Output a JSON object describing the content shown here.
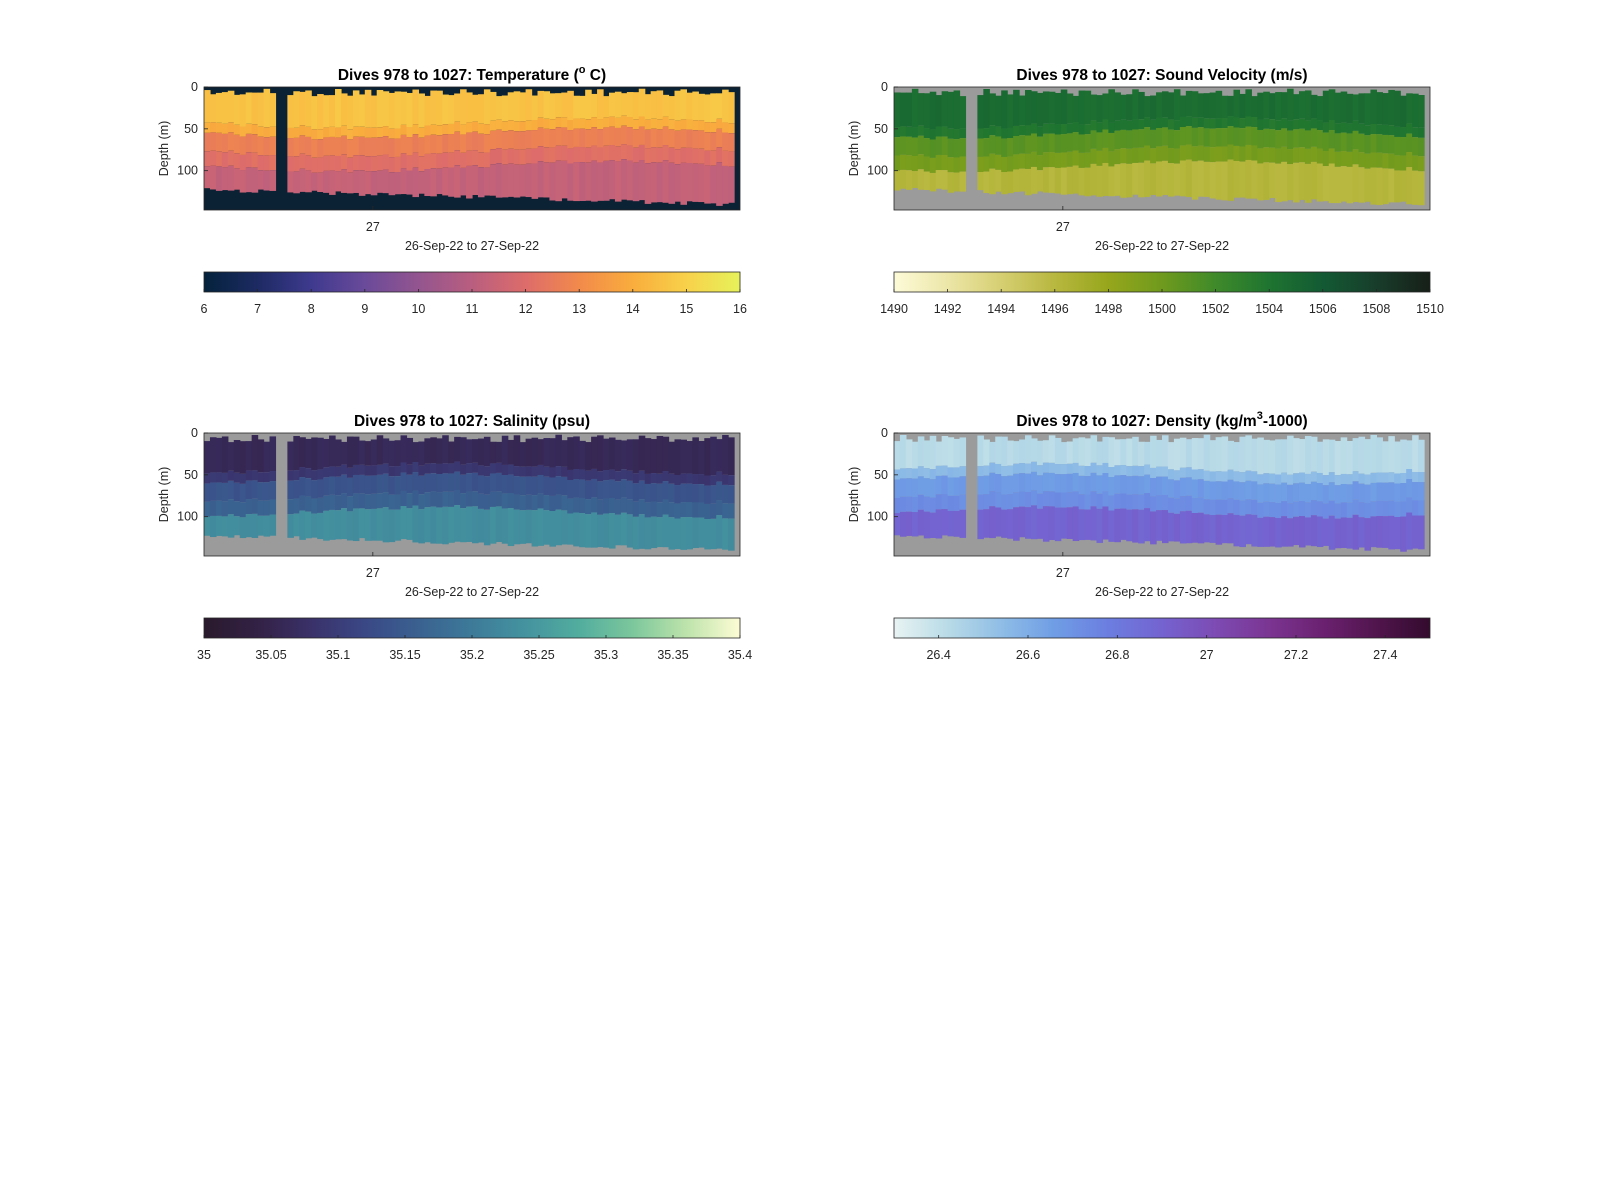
{
  "chart_data": [
    {
      "type": "heatmap",
      "title": {
        "pre": "Dives 978 to 1027: Temperature (",
        "sup": "o",
        "post": " C)"
      },
      "ylabel": "Depth (m)",
      "xlabel": "26-Sep-22 to 27-Sep-22",
      "x_tick_labels": [
        "27"
      ],
      "x_tick_positions": [
        0.315
      ],
      "y_ticks": [
        0,
        50,
        100
      ],
      "ylim": [
        0,
        147
      ],
      "missing_color": "#0b2235",
      "colormap": [
        "#03223b",
        "#1d2a63",
        "#3e3a8e",
        "#6a4a9a",
        "#93558f",
        "#b95e7f",
        "#dd6c6a",
        "#f28a4b",
        "#f9ad3d",
        "#f8d14a",
        "#e6f25a"
      ],
      "colorbar": {
        "min": 6,
        "max": 16,
        "ticks": [
          6,
          7,
          8,
          9,
          10,
          11,
          12,
          13,
          14,
          15,
          16
        ]
      },
      "profile": {
        "top": 14.6,
        "upper": 14.0,
        "mid": 12.1,
        "deep": 11.3
      }
    },
    {
      "type": "heatmap",
      "title": {
        "pre": "Dives 978 to 1027: Sound Velocity (m/s)",
        "sup": "",
        "post": ""
      },
      "ylabel": "Depth (m)",
      "xlabel": "26-Sep-22 to 27-Sep-22",
      "x_tick_labels": [
        "27"
      ],
      "x_tick_positions": [
        0.315
      ],
      "y_ticks": [
        0,
        50,
        100
      ],
      "ylim": [
        0,
        147
      ],
      "missing_color": "#9b9b9b",
      "colormap": [
        "#fdfbd8",
        "#ece6a8",
        "#d6cf72",
        "#b8b73f",
        "#96a61c",
        "#6f9a1d",
        "#3f8a2a",
        "#1e7430",
        "#135a34",
        "#183d2b",
        "#171f18"
      ],
      "colorbar": {
        "min": 1490,
        "max": 1510,
        "ticks": [
          1490,
          1492,
          1494,
          1496,
          1498,
          1500,
          1502,
          1504,
          1506,
          1508,
          1510
        ]
      },
      "profile": {
        "top": 1504.6,
        "upper": 1503.8,
        "mid": 1499.6,
        "deep": 1496.2
      }
    },
    {
      "type": "heatmap",
      "title": {
        "pre": "Dives 978 to 1027: Salinity (psu)",
        "sup": "",
        "post": ""
      },
      "ylabel": "Depth (m)",
      "xlabel": "26-Sep-22 to 27-Sep-22",
      "x_tick_labels": [
        "27"
      ],
      "x_tick_positions": [
        0.315
      ],
      "y_ticks": [
        0,
        50,
        100
      ],
      "ylim": [
        0,
        147
      ],
      "missing_color": "#9b9b9b",
      "colormap": [
        "#2a1a2c",
        "#332145",
        "#3a3169",
        "#3a4886",
        "#3a6190",
        "#3d7a99",
        "#44939f",
        "#52ad9e",
        "#7cc79c",
        "#bde3ab",
        "#fdfcd4"
      ],
      "colorbar": {
        "min": 35,
        "max": 35.4,
        "ticks": [
          35,
          35.05,
          35.1,
          35.15,
          35.2,
          35.25,
          35.3,
          35.35,
          35.4
        ]
      },
      "profile": {
        "top": 35.06,
        "upper": 35.09,
        "mid": 35.16,
        "deep": 35.23
      }
    },
    {
      "type": "heatmap",
      "title": {
        "pre": "Dives 978 to 1027: Density (kg/m",
        "sup": "3",
        "post": "-1000)"
      },
      "ylabel": "Depth (m)",
      "xlabel": "26-Sep-22 to 27-Sep-22",
      "x_tick_labels": [
        "27"
      ],
      "x_tick_positions": [
        0.315
      ],
      "y_ticks": [
        0,
        50,
        100
      ],
      "ylim": [
        0,
        147
      ],
      "missing_color": "#9b9b9b",
      "colormap": [
        "#e8f3f2",
        "#b9dbe7",
        "#8fbde6",
        "#6f9de5",
        "#6b7ee0",
        "#7463d0",
        "#7d4bb3",
        "#7b3592",
        "#6b2170",
        "#51154d",
        "#330b2e"
      ],
      "colorbar": {
        "min": 26.3,
        "max": 27.5,
        "ticks": [
          26.4,
          26.6,
          26.8,
          27,
          27.2,
          27.4
        ]
      },
      "profile": {
        "top": 26.42,
        "upper": 26.55,
        "mid": 26.72,
        "deep": 26.9
      }
    }
  ]
}
